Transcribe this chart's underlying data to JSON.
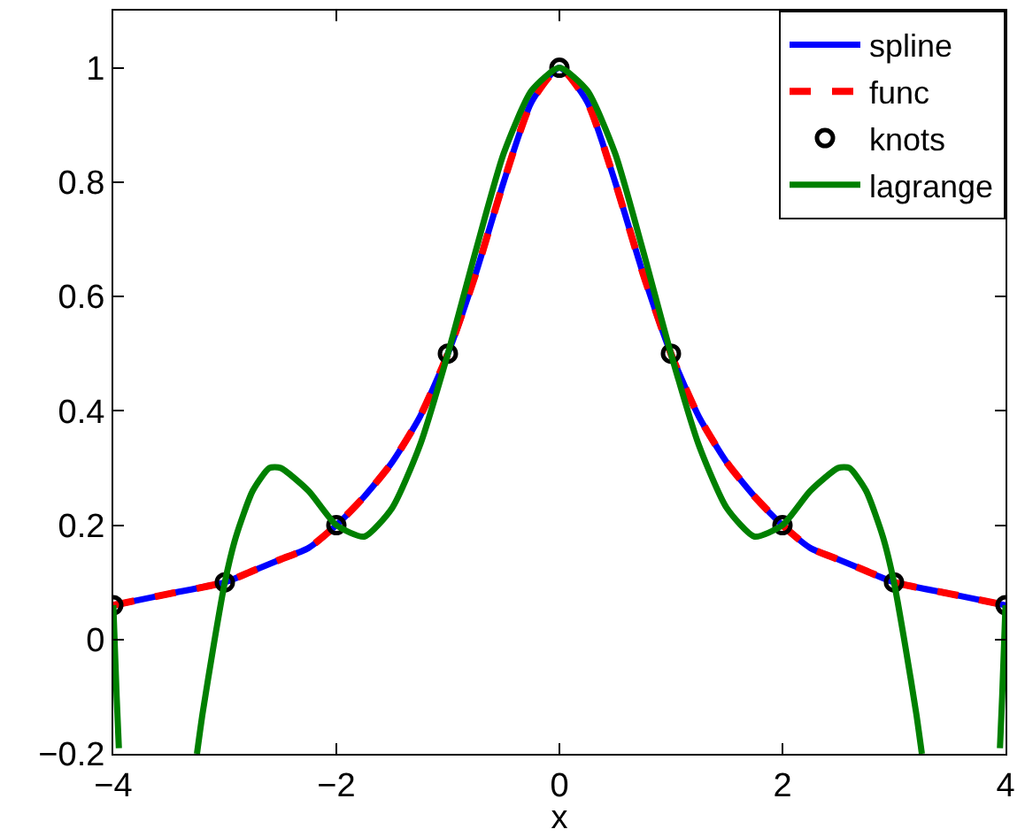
{
  "chart_data": {
    "type": "line",
    "xlabel": "x",
    "xlim": [
      -4,
      4
    ],
    "ylim": [
      -0.2,
      1.1
    ],
    "xticks": [
      -4,
      -2,
      0,
      2,
      4
    ],
    "yticks": [
      -0.2,
      0,
      0.2,
      0.4,
      0.6,
      0.8,
      1
    ],
    "legend": "top right",
    "series": [
      {
        "name": "spline",
        "type": "line",
        "color": "#0000ff",
        "line_style": "solid",
        "x": [
          -4,
          -3.5,
          -3,
          -2.75,
          -2.5,
          -2.25,
          -2,
          -1.75,
          -1.5,
          -1.25,
          -1,
          -0.75,
          -0.5,
          -0.25,
          0,
          0.25,
          0.5,
          0.75,
          1,
          1.25,
          1.5,
          1.75,
          2,
          2.25,
          2.5,
          2.75,
          3,
          3.5,
          4
        ],
        "values": [
          0.06,
          0.08,
          0.1,
          0.12,
          0.14,
          0.16,
          0.2,
          0.25,
          0.31,
          0.39,
          0.5,
          0.64,
          0.8,
          0.94,
          1,
          0.94,
          0.8,
          0.64,
          0.5,
          0.39,
          0.31,
          0.25,
          0.2,
          0.16,
          0.14,
          0.12,
          0.1,
          0.08,
          0.06
        ]
      },
      {
        "name": "func",
        "type": "line",
        "color": "#ff0000",
        "line_style": "dashed",
        "x": [
          -4,
          -3.5,
          -3,
          -2.75,
          -2.5,
          -2.25,
          -2,
          -1.75,
          -1.5,
          -1.25,
          -1,
          -0.75,
          -0.5,
          -0.25,
          0,
          0.25,
          0.5,
          0.75,
          1,
          1.25,
          1.5,
          1.75,
          2,
          2.25,
          2.5,
          2.75,
          3,
          3.5,
          4
        ],
        "values": [
          0.06,
          0.08,
          0.1,
          0.12,
          0.14,
          0.16,
          0.2,
          0.25,
          0.31,
          0.39,
          0.5,
          0.64,
          0.8,
          0.94,
          1,
          0.94,
          0.8,
          0.64,
          0.5,
          0.39,
          0.31,
          0.25,
          0.2,
          0.16,
          0.14,
          0.12,
          0.1,
          0.08,
          0.06
        ]
      },
      {
        "name": "knots",
        "type": "scatter",
        "color": "#000000",
        "marker": "circle",
        "x": [
          -4,
          -3,
          -2,
          -1,
          0,
          1,
          2,
          3,
          4
        ],
        "values": [
          0.06,
          0.1,
          0.2,
          0.5,
          1,
          0.5,
          0.2,
          0.1,
          0.06
        ]
      },
      {
        "name": "lagrange",
        "color": "#008000",
        "line_style": "solid",
        "x": [
          -4,
          -3.97,
          -3.95,
          -3.6,
          -3.25,
          -3.2,
          -3.1,
          -3,
          -2.9,
          -2.75,
          -2.6,
          -2.5,
          -2.25,
          -2,
          -1.75,
          -1.5,
          -1.25,
          -1,
          -0.75,
          -0.5,
          -0.25,
          0,
          0.25,
          0.5,
          0.75,
          1,
          1.25,
          1.5,
          1.75,
          2,
          2.25,
          2.5,
          2.6,
          2.75,
          2.9,
          3,
          3.1,
          3.2,
          3.25,
          3.6,
          3.95,
          3.97,
          4
        ],
        "values": [
          0.06,
          -0.1,
          -0.19,
          null,
          -0.2,
          -0.13,
          -0.01,
          0.1,
          0.18,
          0.26,
          0.3,
          0.3,
          0.26,
          0.2,
          0.18,
          0.23,
          0.34,
          0.5,
          0.68,
          0.85,
          0.96,
          1,
          0.96,
          0.85,
          0.68,
          0.5,
          0.34,
          0.23,
          0.18,
          0.2,
          0.26,
          0.3,
          0.3,
          0.26,
          0.18,
          0.1,
          -0.01,
          -0.13,
          -0.2,
          null,
          -0.19,
          -0.1,
          0.06
        ]
      }
    ]
  }
}
